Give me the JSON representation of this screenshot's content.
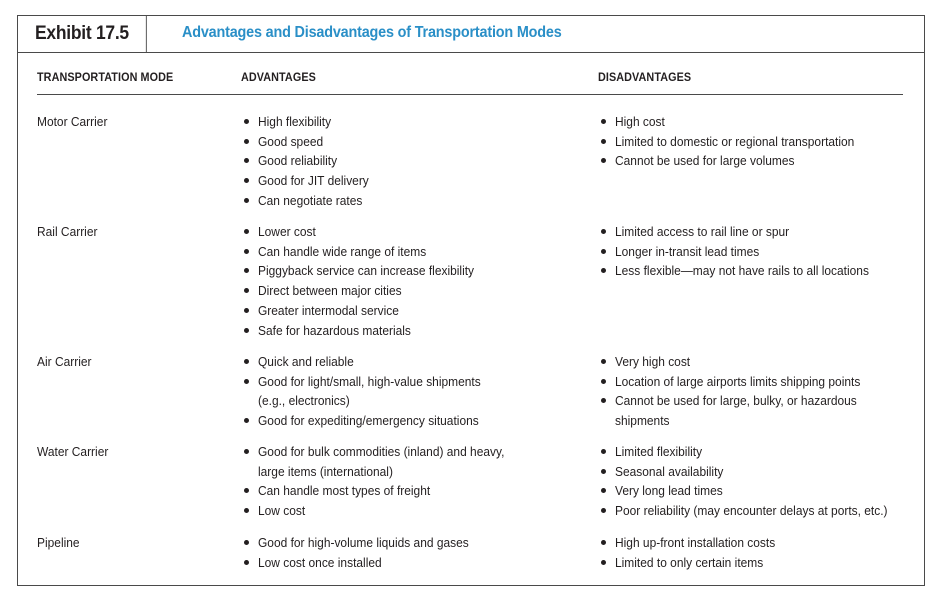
{
  "exhibit": {
    "label": "Exhibit 17.5",
    "title": "Advantages and Disadvantages of Transportation Modes"
  },
  "columns": {
    "mode": "TRANSPORTATION MODE",
    "advantages": "ADVANTAGES",
    "disadvantages": "DISADVANTAGES"
  },
  "rows": [
    {
      "mode": "Motor Carrier",
      "advantages": [
        "High flexibility",
        "Good speed",
        "Good reliability",
        "Good for JIT delivery",
        "Can negotiate rates"
      ],
      "disadvantages": [
        "High cost",
        "Limited to domestic or regional transportation",
        "Cannot be used for large volumes"
      ]
    },
    {
      "mode": "Rail Carrier",
      "advantages": [
        "Lower cost",
        "Can handle wide range of items",
        "Piggyback service can increase flexibility",
        "Direct between major cities",
        "Greater intermodal service",
        "Safe for hazardous materials"
      ],
      "disadvantages": [
        "Limited access to rail line or spur",
        "Longer in-transit lead times",
        "Less flexible—may not have rails to all locations"
      ]
    },
    {
      "mode": "Air Carrier",
      "advantages": [
        "Quick and reliable",
        "Good for light/small, high-value shipments\n(e.g., electronics)",
        "Good for expediting/emergency situations"
      ],
      "disadvantages": [
        "Very high cost",
        "Location of large airports limits shipping points",
        "Cannot be used for large, bulky, or hazardous\nshipments"
      ]
    },
    {
      "mode": "Water Carrier",
      "advantages": [
        "Good for bulk commodities (inland) and heavy,\nlarge items (international)",
        "Can handle most types of freight",
        "Low cost"
      ],
      "disadvantages": [
        "Limited flexibility",
        "Seasonal availability",
        "Very long lead times",
        "Poor reliability (may encounter delays at ports, etc.)"
      ]
    },
    {
      "mode": "Pipeline",
      "advantages": [
        "Good for high-volume liquids and gases",
        "Low cost once installed"
      ],
      "disadvantages": [
        "High up-front installation costs",
        "Limited to only certain items"
      ]
    }
  ]
}
